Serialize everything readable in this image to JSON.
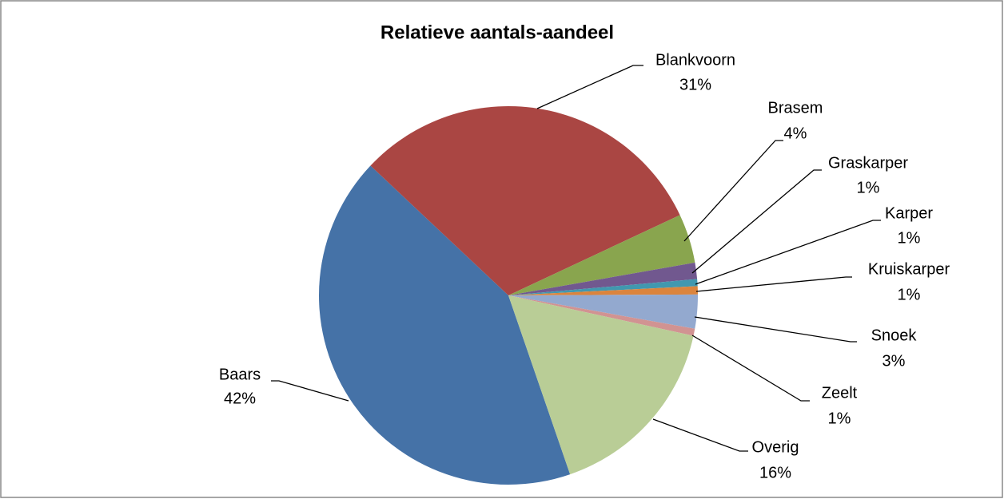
{
  "chart_data": {
    "type": "pie",
    "title": "Relatieve aantals-aandeel",
    "categories": [
      "Baars",
      "Blankvoorn",
      "Brasem",
      "Graskarper",
      "Karper",
      "Kruiskarper",
      "Snoek",
      "Zeelt",
      "Overig"
    ],
    "values": [
      42.3,
      31.0,
      4.2,
      1.4,
      0.6,
      0.7,
      2.9,
      0.6,
      16.3
    ],
    "value_labels": [
      "42%",
      "31%",
      "4%",
      "1%",
      "1%",
      "1%",
      "3%",
      "1%",
      "16%"
    ],
    "colors": [
      "#4572a7",
      "#aa4643",
      "#89a54e",
      "#71588f",
      "#4198af",
      "#db843d",
      "#93a9cf",
      "#d19392",
      "#b9cd96"
    ]
  }
}
